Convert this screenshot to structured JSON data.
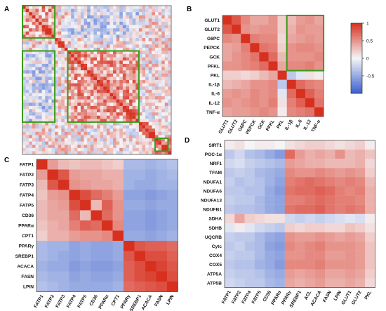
{
  "colors": {
    "neg": "#3a5fcd",
    "mid": "#f5f5f7",
    "pos": "#d7301f",
    "highlight": "#3a9a1a",
    "frame": "#555555"
  },
  "colorbar": {
    "ticks": [
      "1",
      "0.5",
      "0",
      "-0.5"
    ]
  },
  "chart_data": [
    {
      "type": "heatmap",
      "panel": "A",
      "labels": [],
      "n": 46,
      "highlight_blocks": [
        [
          0,
          9
        ],
        [
          14,
          35
        ],
        [
          41,
          44
        ]
      ]
    },
    {
      "type": "heatmap",
      "panel": "B",
      "labels": [
        "GLUT1",
        "GLUT2",
        "G6PC",
        "PEPCK",
        "GCK",
        "PFKL",
        "PKL",
        "IL-1β",
        "IL-6",
        "IL-12",
        "TNF-α"
      ],
      "values": [
        [
          1,
          0.8,
          0.55,
          0.4,
          0.4,
          0.5,
          0.2,
          0.3,
          0.45,
          0.5,
          0.4
        ],
        [
          0.8,
          1,
          0.5,
          0.45,
          0.5,
          0.5,
          0.2,
          0.35,
          0.5,
          0.45,
          0.45
        ],
        [
          0.55,
          0.5,
          1,
          0.6,
          0.55,
          0.55,
          0.15,
          0.4,
          0.45,
          0.5,
          0.45
        ],
        [
          0.4,
          0.45,
          0.6,
          1,
          0.65,
          0.6,
          0.2,
          0.5,
          0.55,
          0.55,
          0.5
        ],
        [
          0.4,
          0.5,
          0.55,
          0.65,
          1,
          0.7,
          0.3,
          0.5,
          0.5,
          0.5,
          0.55
        ],
        [
          0.5,
          0.5,
          0.55,
          0.6,
          0.7,
          1,
          0.4,
          0.55,
          0.55,
          0.6,
          0.5
        ],
        [
          0.2,
          0.2,
          0.15,
          0.2,
          0.3,
          0.4,
          1,
          -0.3,
          -0.1,
          0.1,
          0.05
        ],
        [
          0.3,
          0.35,
          0.4,
          0.5,
          0.5,
          0.55,
          -0.3,
          1,
          0.7,
          0.6,
          0.55
        ],
        [
          0.45,
          0.5,
          0.45,
          0.55,
          0.5,
          0.55,
          -0.1,
          0.7,
          1,
          0.75,
          0.6
        ],
        [
          0.5,
          0.45,
          0.5,
          0.55,
          0.5,
          0.6,
          0.1,
          0.6,
          0.75,
          1,
          0.65
        ],
        [
          0.4,
          0.45,
          0.45,
          0.5,
          0.55,
          0.5,
          0.05,
          0.55,
          0.6,
          0.65,
          1
        ]
      ],
      "highlight": {
        "rows": [
          0,
          5
        ],
        "cols": [
          7,
          10
        ]
      }
    },
    {
      "type": "heatmap",
      "panel": "C",
      "labels": [
        "FATP1",
        "FATP2",
        "FATP3",
        "FATP4",
        "FATP5",
        "CD36",
        "PPARα",
        "CPT1",
        "PPARγ",
        "SREBP1",
        "ACACA",
        "FASN",
        "LPIN"
      ],
      "values": [
        [
          1,
          0.45,
          0.3,
          0.25,
          0.3,
          0.3,
          0.25,
          0.2,
          -0.4,
          -0.4,
          -0.45,
          -0.4,
          -0.35
        ],
        [
          0.45,
          1,
          0.8,
          0.45,
          0.4,
          0.4,
          0.35,
          0.35,
          -0.45,
          -0.45,
          -0.5,
          -0.45,
          -0.4
        ],
        [
          0.3,
          0.8,
          1,
          0.5,
          0.45,
          0.4,
          0.4,
          0.35,
          -0.45,
          -0.5,
          -0.5,
          -0.45,
          -0.45
        ],
        [
          0.25,
          0.45,
          0.5,
          1,
          0.85,
          0.7,
          0.6,
          0.45,
          -0.55,
          -0.55,
          -0.6,
          -0.55,
          -0.5
        ],
        [
          0.3,
          0.4,
          0.45,
          0.85,
          1,
          0.3,
          0.75,
          0.5,
          -0.5,
          -0.5,
          -0.55,
          -0.5,
          -0.5
        ],
        [
          0.3,
          0.4,
          0.4,
          0.7,
          0.3,
          1,
          0.7,
          0.5,
          -0.55,
          -0.55,
          -0.6,
          -0.55,
          -0.5
        ],
        [
          0.25,
          0.35,
          0.4,
          0.6,
          0.75,
          0.7,
          1,
          0.55,
          -0.55,
          -0.55,
          -0.6,
          -0.55,
          -0.5
        ],
        [
          0.2,
          0.35,
          0.35,
          0.45,
          0.5,
          0.5,
          0.55,
          1,
          -0.5,
          -0.5,
          -0.55,
          -0.5,
          -0.45
        ],
        [
          -0.4,
          -0.45,
          -0.45,
          -0.55,
          -0.5,
          -0.55,
          -0.55,
          -0.5,
          1,
          0.8,
          0.75,
          0.75,
          0.7
        ],
        [
          -0.4,
          -0.45,
          -0.5,
          -0.55,
          -0.5,
          -0.55,
          -0.55,
          -0.5,
          0.8,
          1,
          0.85,
          0.85,
          0.75
        ],
        [
          -0.45,
          -0.5,
          -0.5,
          -0.6,
          -0.55,
          -0.6,
          -0.6,
          -0.55,
          0.75,
          0.85,
          1,
          0.9,
          0.8
        ],
        [
          -0.4,
          -0.45,
          -0.45,
          -0.55,
          -0.5,
          -0.55,
          -0.55,
          -0.5,
          0.75,
          0.85,
          0.9,
          1,
          0.85
        ],
        [
          -0.35,
          -0.4,
          -0.45,
          -0.5,
          -0.5,
          -0.5,
          -0.5,
          -0.45,
          0.7,
          0.75,
          0.8,
          0.85,
          1
        ]
      ]
    },
    {
      "type": "heatmap",
      "panel": "D",
      "row_labels": [
        "SIRT1",
        "PGC-1α",
        "NRF1",
        "TFAM",
        "NDUFA1",
        "NDUFA6",
        "NDUFA13",
        "NDUFB1",
        "SDHA",
        "SDHB",
        "UQCRB",
        "Cytc",
        "COX4",
        "COX5",
        "ATP5A",
        "ATP5B"
      ],
      "col_labels": [
        "FATP1",
        "FATP2",
        "FATP4",
        "FATP5",
        "CD36",
        "PPARα",
        "PPARγ",
        "SREBP1",
        "ACL",
        "ACACA",
        "FASN",
        "LPIN",
        "GLUT1",
        "GLUT2",
        "PKL"
      ],
      "values": [
        [
          0.05,
          0.1,
          0.0,
          0.05,
          0.05,
          0.0,
          0.1,
          0.15,
          0.2,
          0.2,
          0.15,
          0.1,
          0.15,
          0.2,
          0.05
        ],
        [
          -0.3,
          -0.2,
          -0.35,
          -0.4,
          -0.5,
          -0.6,
          0.7,
          0.45,
          0.35,
          0.4,
          0.35,
          0.5,
          0.3,
          0.35,
          0.25
        ],
        [
          -0.2,
          -0.15,
          -0.25,
          -0.3,
          -0.35,
          -0.4,
          0.45,
          0.4,
          0.35,
          0.35,
          0.3,
          0.3,
          0.3,
          0.35,
          0.15
        ],
        [
          -0.3,
          -0.25,
          -0.3,
          -0.4,
          -0.45,
          -0.5,
          0.55,
          0.5,
          0.5,
          0.55,
          0.5,
          0.45,
          0.5,
          0.45,
          0.2
        ],
        [
          -0.25,
          -0.35,
          -0.3,
          -0.35,
          -0.45,
          -0.55,
          0.6,
          0.65,
          0.7,
          0.65,
          0.6,
          0.55,
          0.6,
          0.55,
          0.3
        ],
        [
          -0.3,
          -0.3,
          -0.35,
          -0.35,
          -0.5,
          -0.6,
          0.65,
          0.7,
          0.7,
          0.75,
          0.7,
          0.6,
          0.55,
          0.6,
          0.35
        ],
        [
          -0.25,
          -0.3,
          -0.3,
          -0.4,
          -0.5,
          -0.55,
          0.6,
          0.6,
          0.65,
          0.7,
          0.65,
          0.6,
          0.6,
          0.55,
          0.35
        ],
        [
          -0.3,
          -0.35,
          -0.35,
          -0.4,
          -0.5,
          -0.55,
          0.65,
          0.7,
          0.7,
          0.75,
          0.65,
          0.6,
          0.65,
          0.6,
          0.35
        ],
        [
          0.15,
          0.4,
          0.2,
          0.15,
          0.1,
          0.1,
          -0.2,
          -0.25,
          -0.2,
          -0.25,
          -0.2,
          -0.15,
          -0.1,
          -0.15,
          0.05
        ],
        [
          -0.1,
          0.05,
          -0.1,
          -0.2,
          -0.25,
          -0.3,
          0.2,
          0.15,
          0.2,
          0.2,
          0.15,
          0.15,
          0.25,
          0.2,
          0.1
        ],
        [
          -0.25,
          -0.3,
          -0.3,
          -0.4,
          -0.5,
          -0.55,
          0.5,
          0.45,
          0.45,
          0.5,
          0.45,
          0.4,
          0.45,
          0.4,
          0.2
        ],
        [
          -0.3,
          -0.25,
          -0.35,
          -0.4,
          -0.55,
          -0.6,
          0.55,
          0.5,
          0.55,
          0.6,
          0.5,
          0.5,
          0.5,
          0.45,
          0.25
        ],
        [
          -0.25,
          -0.3,
          -0.3,
          -0.4,
          -0.5,
          -0.55,
          0.5,
          0.5,
          0.55,
          0.55,
          0.45,
          0.45,
          0.5,
          0.45,
          0.25
        ],
        [
          -0.3,
          -0.35,
          -0.35,
          -0.45,
          -0.5,
          -0.6,
          0.55,
          0.55,
          0.55,
          0.6,
          0.5,
          0.5,
          0.5,
          0.45,
          0.25
        ],
        [
          -0.25,
          -0.3,
          -0.3,
          -0.35,
          -0.45,
          -0.5,
          0.45,
          0.4,
          0.45,
          0.5,
          0.4,
          0.4,
          0.45,
          0.4,
          0.2
        ],
        [
          -0.2,
          -0.25,
          -0.3,
          -0.3,
          -0.4,
          -0.45,
          0.4,
          0.35,
          0.4,
          0.45,
          0.35,
          0.35,
          0.4,
          0.35,
          0.15
        ]
      ]
    }
  ]
}
